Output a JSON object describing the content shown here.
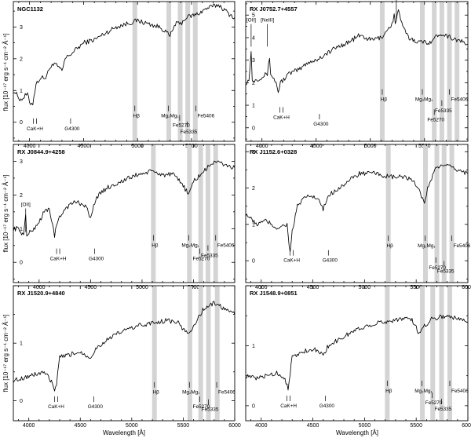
{
  "chart_data": {
    "type": "line",
    "ylabel": "flux [10⁻¹⁷ erg s⁻¹ cm⁻² Å⁻¹]",
    "xlabel": "Wavelength [Å]",
    "panels": [
      {
        "id": "p1",
        "title": "NGC1132",
        "xlim": [
          3850,
          5900
        ],
        "ylim": [
          -0.6,
          3.8
        ],
        "xticks": [
          4000,
          4500,
          5000,
          5500
        ],
        "yticks": [
          0,
          1,
          2,
          3
        ],
        "bands": [
          4975,
          5290,
          5395,
          5465,
          5535
        ],
        "lines": [
          [
            "CaK+H",
            4035,
            -0.1
          ],
          [
            "G4300",
            4380,
            -0.1
          ],
          [
            "Hβ",
            4975,
            0.3
          ],
          [
            "Mg₂Mg₁",
            5285,
            0.3
          ],
          [
            "Fe5270",
            5390,
            0.0
          ],
          [
            "Fe5335",
            5460,
            -0.2
          ],
          [
            "Fe5406",
            5540,
            0.3
          ]
        ],
        "emis": [],
        "anchors": [
          [
            3850,
            1.0
          ],
          [
            3920,
            0.7
          ],
          [
            3980,
            0.9
          ],
          [
            4000,
            0.6
          ],
          [
            4030,
            0.6
          ],
          [
            4060,
            1.2
          ],
          [
            4100,
            1.4
          ],
          [
            4150,
            1.4
          ],
          [
            4200,
            1.8
          ],
          [
            4250,
            1.8
          ],
          [
            4300,
            1.6
          ],
          [
            4330,
            2.0
          ],
          [
            4400,
            2.2
          ],
          [
            4500,
            2.5
          ],
          [
            4600,
            2.6
          ],
          [
            4700,
            2.8
          ],
          [
            4800,
            3.0
          ],
          [
            4900,
            3.1
          ],
          [
            5000,
            3.2
          ],
          [
            5100,
            3.1
          ],
          [
            5200,
            3.0
          ],
          [
            5250,
            2.9
          ],
          [
            5300,
            2.7
          ],
          [
            5350,
            3.1
          ],
          [
            5400,
            3.1
          ],
          [
            5450,
            3.3
          ],
          [
            5550,
            3.4
          ],
          [
            5650,
            3.6
          ],
          [
            5750,
            3.7
          ],
          [
            5850,
            3.4
          ],
          [
            5900,
            3.3
          ]
        ]
      },
      {
        "id": "p2",
        "title": "RX J0752.7+4557",
        "xlim": [
          3850,
          5900
        ],
        "ylim": [
          -0.6,
          5.6
        ],
        "xticks": [
          4000,
          4500,
          5000,
          5500
        ],
        "yticks": [
          0,
          1,
          2,
          3,
          4,
          5
        ],
        "bands": [
          5110,
          5480,
          5590,
          5660,
          5730,
          5800
        ],
        "lines": [
          [
            "CaK+H",
            4165,
            0.6
          ],
          [
            "G4300",
            4530,
            0.3
          ],
          [
            "Hβ",
            5110,
            1.4
          ],
          [
            "Mg₂Mg₁",
            5480,
            1.4
          ],
          [
            "Fe5270",
            5590,
            0.5
          ],
          [
            "Fe5335",
            5660,
            0.9
          ],
          [
            "Fe5406",
            5730,
            1.4
          ]
        ],
        "emis": [
          [
            "[OII]",
            3900,
            3.6,
            4.6
          ],
          [
            "[NeIII]",
            4050,
            3.6,
            4.6
          ],
          [
            "[OIII]",
            5240,
            4.8,
            5.7
          ]
        ],
        "anchors": [
          [
            3850,
            2.0
          ],
          [
            3880,
            2.1
          ],
          [
            3900,
            3.4
          ],
          [
            3910,
            2.1
          ],
          [
            3980,
            2.2
          ],
          [
            4050,
            2.4
          ],
          [
            4070,
            3.1
          ],
          [
            4080,
            2.4
          ],
          [
            4130,
            2.0
          ],
          [
            4150,
            1.6
          ],
          [
            4170,
            2.0
          ],
          [
            4250,
            2.4
          ],
          [
            4350,
            2.6
          ],
          [
            4420,
            2.9
          ],
          [
            4500,
            3.0
          ],
          [
            4600,
            3.3
          ],
          [
            4700,
            3.6
          ],
          [
            4800,
            3.8
          ],
          [
            4900,
            4.1
          ],
          [
            5000,
            3.9
          ],
          [
            5100,
            4.0
          ],
          [
            5150,
            4.3
          ],
          [
            5200,
            4.6
          ],
          [
            5220,
            5.0
          ],
          [
            5230,
            4.6
          ],
          [
            5260,
            5.3
          ],
          [
            5280,
            4.7
          ],
          [
            5350,
            4.0
          ],
          [
            5450,
            3.8
          ],
          [
            5550,
            3.8
          ],
          [
            5650,
            4.2
          ],
          [
            5750,
            4.0
          ],
          [
            5900,
            3.7
          ]
        ]
      },
      {
        "id": "p3",
        "title": "RX J0844.9+4258",
        "xlim": [
          3750,
          5900
        ],
        "ylim": [
          -0.6,
          3.5
        ],
        "xticks": [
          4000,
          4500,
          5000,
          5500
        ],
        "yticks": [
          0,
          1,
          2,
          3
        ],
        "bands": [
          5110,
          5460,
          5570,
          5640,
          5715
        ],
        "lines": [
          [
            "CaK+H",
            4170,
            0.2
          ],
          [
            "G4300",
            4540,
            0.2
          ],
          [
            "Hβ",
            5110,
            0.6
          ],
          [
            "Mg₂Mg₁",
            5455,
            0.6
          ],
          [
            "Fe5270",
            5560,
            0.2
          ],
          [
            "Fe5335",
            5640,
            0.3
          ],
          [
            "Fe5406",
            5715,
            0.6
          ]
        ],
        "emis": [
          [
            "[OII]",
            3870,
            0.9,
            1.6
          ]
        ],
        "anchors": [
          [
            3750,
            1.0
          ],
          [
            3800,
            1.0
          ],
          [
            3850,
            0.8
          ],
          [
            3870,
            1.4
          ],
          [
            3880,
            0.8
          ],
          [
            3950,
            1.0
          ],
          [
            4000,
            1.2
          ],
          [
            4050,
            1.5
          ],
          [
            4100,
            1.6
          ],
          [
            4150,
            0.8
          ],
          [
            4180,
            1.2
          ],
          [
            4250,
            1.6
          ],
          [
            4350,
            1.8
          ],
          [
            4450,
            1.7
          ],
          [
            4500,
            1.3
          ],
          [
            4550,
            1.9
          ],
          [
            4650,
            2.2
          ],
          [
            4800,
            2.4
          ],
          [
            4950,
            2.6
          ],
          [
            5100,
            2.7
          ],
          [
            5200,
            2.6
          ],
          [
            5300,
            2.6
          ],
          [
            5400,
            2.3
          ],
          [
            5450,
            2.0
          ],
          [
            5500,
            2.4
          ],
          [
            5600,
            2.7
          ],
          [
            5700,
            3.0
          ],
          [
            5800,
            2.9
          ],
          [
            5900,
            2.8
          ]
        ]
      },
      {
        "id": "p4",
        "title": "RX J1152.6+0328",
        "xlim": [
          3850,
          6000
        ],
        "ylim": [
          -0.6,
          3.2
        ],
        "xticks": [
          4000,
          4500,
          5000,
          5500,
          6000
        ],
        "yticks": [
          0,
          1,
          2,
          3
        ],
        "bands": [
          5230,
          5590,
          5700,
          5770,
          5845
        ],
        "lines": [
          [
            "CaK+H",
            4280,
            0.1
          ],
          [
            "G4300",
            4650,
            0.1
          ],
          [
            "Hβ",
            5230,
            0.5
          ],
          [
            "Mg₂Mg₁",
            5585,
            0.5
          ],
          [
            "Fe5270",
            5690,
            -0.1
          ],
          [
            "Fe5335",
            5770,
            -0.2
          ],
          [
            "Fe5406",
            5845,
            0.5
          ]
        ],
        "emis": [],
        "anchors": [
          [
            3850,
            1.3
          ],
          [
            3950,
            1.0
          ],
          [
            4050,
            1.1
          ],
          [
            4150,
            0.9
          ],
          [
            4250,
            1.0
          ],
          [
            4280,
            0.2
          ],
          [
            4300,
            0.8
          ],
          [
            4350,
            1.5
          ],
          [
            4450,
            1.8
          ],
          [
            4550,
            1.7
          ],
          [
            4600,
            1.4
          ],
          [
            4650,
            1.8
          ],
          [
            4750,
            2.0
          ],
          [
            4850,
            2.2
          ],
          [
            4950,
            2.4
          ],
          [
            5100,
            2.4
          ],
          [
            5250,
            2.3
          ],
          [
            5400,
            2.3
          ],
          [
            5500,
            2.1
          ],
          [
            5580,
            1.6
          ],
          [
            5620,
            2.1
          ],
          [
            5700,
            2.6
          ],
          [
            5800,
            2.6
          ],
          [
            5900,
            2.5
          ],
          [
            6000,
            2.4
          ]
        ]
      },
      {
        "id": "p5",
        "title": "RX J1520.9+4840",
        "xlim": [
          3850,
          6000
        ],
        "ylim": [
          -0.35,
          2.0
        ],
        "xticks": [
          4000,
          4500,
          5000,
          5500,
          6000
        ],
        "yticks": [
          0,
          1
        ],
        "bands": [
          5220,
          5565,
          5670,
          5745,
          5830
        ],
        "lines": [
          [
            "CaK+H",
            4250,
            -0.05
          ],
          [
            "G4300",
            4630,
            -0.05
          ],
          [
            "Hβ",
            5220,
            0.2
          ],
          [
            "Mg₂Mg₁",
            5560,
            0.2
          ],
          [
            "Fe5270",
            5660,
            -0.05
          ],
          [
            "Fe5335",
            5745,
            -0.1
          ],
          [
            "Fe5406",
            5825,
            0.2
          ]
        ],
        "emis": [],
        "anchors": [
          [
            3850,
            0.35
          ],
          [
            3950,
            0.4
          ],
          [
            4050,
            0.45
          ],
          [
            4150,
            0.5
          ],
          [
            4230,
            0.3
          ],
          [
            4250,
            0.15
          ],
          [
            4270,
            0.3
          ],
          [
            4300,
            0.75
          ],
          [
            4400,
            0.8
          ],
          [
            4500,
            0.85
          ],
          [
            4600,
            0.75
          ],
          [
            4650,
            0.9
          ],
          [
            4750,
            1.05
          ],
          [
            4900,
            1.2
          ],
          [
            5050,
            1.3
          ],
          [
            5200,
            1.35
          ],
          [
            5350,
            1.4
          ],
          [
            5450,
            1.35
          ],
          [
            5550,
            1.15
          ],
          [
            5600,
            1.3
          ],
          [
            5700,
            1.6
          ],
          [
            5800,
            1.7
          ],
          [
            5900,
            1.6
          ],
          [
            6000,
            1.5
          ]
        ]
      },
      {
        "id": "p6",
        "title": "RX J1548.9+0851",
        "xlim": [
          3850,
          6000
        ],
        "ylim": [
          -0.25,
          2.0
        ],
        "xticks": [
          4000,
          4500,
          5000,
          5500,
          6000
        ],
        "yticks": [
          0,
          1
        ],
        "bands": [
          5220,
          5560,
          5660,
          5745,
          5825
        ],
        "lines": [
          [
            "CaK+H",
            4250,
            0.05
          ],
          [
            "G4300",
            4620,
            0.05
          ],
          [
            "Hβ",
            5220,
            0.3
          ],
          [
            "Mg₂Mg₁",
            5555,
            0.3
          ],
          [
            "Fe5270",
            5655,
            0.1
          ],
          [
            "Fe5335",
            5745,
            0.0
          ],
          [
            "Fe5406",
            5825,
            0.3
          ]
        ],
        "emis": [],
        "anchors": [
          [
            3850,
            0.5
          ],
          [
            3950,
            0.45
          ],
          [
            4050,
            0.5
          ],
          [
            4150,
            0.55
          ],
          [
            4230,
            0.45
          ],
          [
            4260,
            0.3
          ],
          [
            4300,
            0.8
          ],
          [
            4400,
            0.9
          ],
          [
            4500,
            0.95
          ],
          [
            4600,
            0.85
          ],
          [
            4650,
            1.0
          ],
          [
            4750,
            1.1
          ],
          [
            4900,
            1.25
          ],
          [
            5050,
            1.35
          ],
          [
            5200,
            1.4
          ],
          [
            5350,
            1.45
          ],
          [
            5450,
            1.45
          ],
          [
            5530,
            1.2
          ],
          [
            5560,
            1.3
          ],
          [
            5650,
            1.45
          ],
          [
            5800,
            1.5
          ],
          [
            5900,
            1.45
          ],
          [
            6000,
            1.4
          ]
        ]
      }
    ]
  }
}
